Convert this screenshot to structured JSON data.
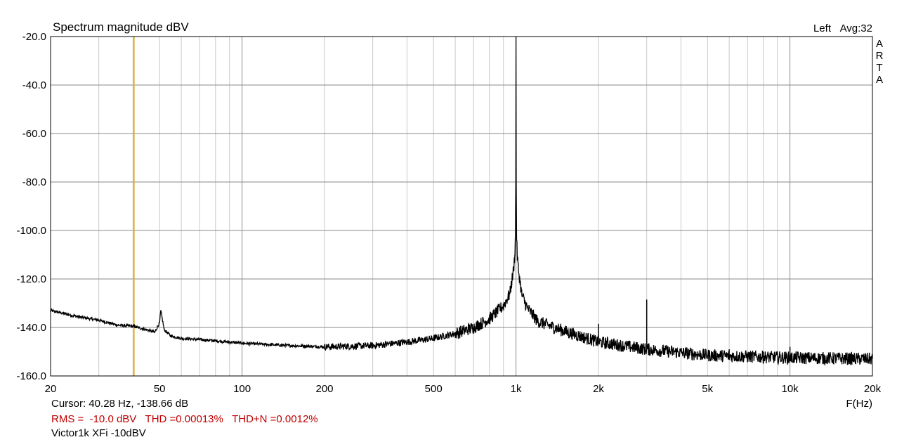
{
  "chart_data": {
    "type": "line",
    "title": "Spectrum magnitude dBV",
    "channel_label": "Left",
    "avg_label": "Avg:32",
    "brand_letters": [
      "A",
      "R",
      "T",
      "A"
    ],
    "xlabel": "F(Hz)",
    "ylabel": "",
    "x_scale": "log",
    "xlim": [
      20,
      20000
    ],
    "ylim": [
      -160,
      -20
    ],
    "grid": true,
    "x_ticks": [
      {
        "value": 20,
        "label": "20"
      },
      {
        "value": 50,
        "label": "50"
      },
      {
        "value": 100,
        "label": "100"
      },
      {
        "value": 200,
        "label": "200"
      },
      {
        "value": 500,
        "label": "500"
      },
      {
        "value": 1000,
        "label": "1k"
      },
      {
        "value": 2000,
        "label": "2k"
      },
      {
        "value": 5000,
        "label": "5k"
      },
      {
        "value": 10000,
        "label": "10k"
      },
      {
        "value": 20000,
        "label": "20k"
      }
    ],
    "y_ticks": [
      {
        "value": -20,
        "label": "-20.0"
      },
      {
        "value": -40,
        "label": "-40.0"
      },
      {
        "value": -60,
        "label": "-60.0"
      },
      {
        "value": -80,
        "label": "-80.0"
      },
      {
        "value": -100,
        "label": "-100.0"
      },
      {
        "value": -120,
        "label": "-120.0"
      },
      {
        "value": -140,
        "label": "-140.0"
      },
      {
        "value": -160,
        "label": "-160.0"
      }
    ],
    "cursor": {
      "x": 40.28,
      "color": "#e0b020"
    },
    "series": [
      {
        "color": "#000000",
        "x": [
          20,
          25,
          30,
          35,
          40,
          45,
          48,
          50,
          50.5,
          52,
          55,
          60,
          70,
          80,
          100,
          150,
          200,
          300,
          400,
          500,
          600,
          700,
          800,
          900,
          950,
          980,
          990,
          995,
          998,
          1000,
          1002,
          1005,
          1010,
          1020,
          1050,
          1100,
          1200,
          1500,
          2000,
          3000,
          5000,
          10000,
          20000
        ],
        "y": [
          -133,
          -135.5,
          -137,
          -139,
          -139.5,
          -141,
          -142,
          -138,
          -133,
          -141,
          -143.5,
          -144.5,
          -145,
          -145.5,
          -146.5,
          -147.5,
          -148,
          -147.5,
          -146,
          -144.5,
          -142.5,
          -140,
          -136.5,
          -131,
          -126,
          -116,
          -110,
          -102,
          -80,
          -20,
          -80,
          -102,
          -110,
          -116,
          -126.5,
          -132,
          -137.5,
          -141.5,
          -146,
          -149,
          -151.5,
          -152.5,
          -153
        ]
      }
    ],
    "peaks": [
      {
        "x": 2000,
        "y": -138.5
      },
      {
        "x": 3000,
        "y": -128.5
      },
      {
        "x": 6000,
        "y": -149
      },
      {
        "x": 8000,
        "y": -150
      },
      {
        "x": 10000,
        "y": -148
      }
    ],
    "annotations": {
      "cursor_readout": "Cursor: 40.28 Hz, -138.66 dB",
      "measurements": "RMS =  -10.0 dBV   THD =0.00013%   THD+N =0.0012%",
      "device": "Victor1k XFi -10dBV"
    }
  }
}
